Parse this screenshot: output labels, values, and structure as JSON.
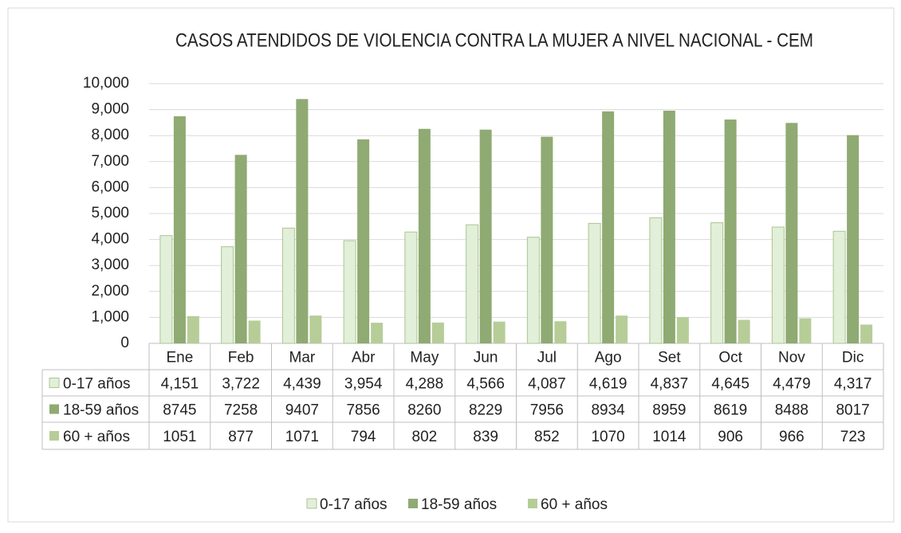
{
  "chart_data": {
    "type": "bar",
    "title": "CASOS ATENDIDOS DE VIOLENCIA CONTRA LA MUJER A NIVEL NACIONAL - CEM",
    "categories": [
      "Ene",
      "Feb",
      "Mar",
      "Abr",
      "May",
      "Jun",
      "Jul",
      "Ago",
      "Set",
      "Oct",
      "Nov",
      "Dic"
    ],
    "series": [
      {
        "name": "0-17 años",
        "color": "#e2efd9",
        "values": [
          4151,
          3722,
          4439,
          3954,
          4288,
          4566,
          4087,
          4619,
          4837,
          4645,
          4479,
          4317
        ],
        "value_labels": [
          "4,151",
          "3,722",
          "4,439",
          "3,954",
          "4,288",
          "4,566",
          "4,087",
          "4,619",
          "4,837",
          "4,645",
          "4,479",
          "4,317"
        ]
      },
      {
        "name": "18-59 años",
        "color": "#8faa72",
        "values": [
          8745,
          7258,
          9407,
          7856,
          8260,
          8229,
          7956,
          8934,
          8959,
          8619,
          8488,
          8017
        ]
      },
      {
        "name": "60 + años",
        "color": "#b6cd98",
        "values": [
          1051,
          877,
          1071,
          794,
          802,
          839,
          852,
          1070,
          1014,
          906,
          966,
          723
        ]
      }
    ],
    "ylim": [
      0,
      10000
    ],
    "yticks": [
      0,
      {
        "value": 1000,
        "label": "1,000"
      },
      {
        "value": 2000,
        "label": "2,000"
      },
      {
        "value": 3000,
        "label": "3,000"
      },
      {
        "value": 4000,
        "label": "4,000"
      },
      {
        "value": 5000,
        "label": "5,000"
      },
      {
        "value": 6000,
        "label": "6,000"
      },
      {
        "value": 7000,
        "label": "7,000"
      },
      {
        "value": 8000,
        "label": "8,000"
      },
      {
        "value": 9000,
        "label": "9,000"
      },
      {
        "value": 10000,
        "label": "10,000"
      }
    ],
    "grid": true,
    "legend": "bottom"
  }
}
